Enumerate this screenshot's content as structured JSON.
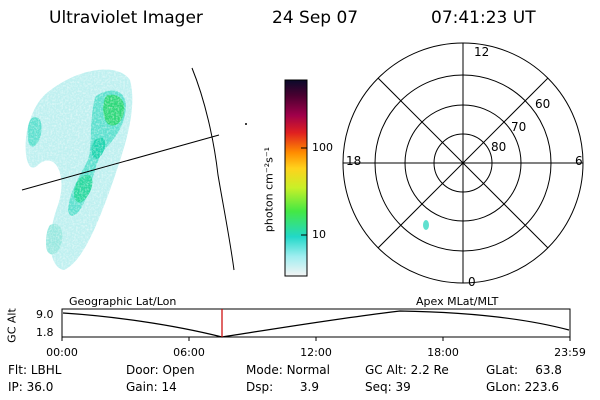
{
  "header": {
    "title": "Ultraviolet Imager",
    "date": "24 Sep 07",
    "time": "07:41:23 UT"
  },
  "colorbar": {
    "unit_label": "photon cm⁻²s⁻¹",
    "ticks": [
      "100",
      "10"
    ]
  },
  "polar_plot": {
    "mlt_labels": {
      "top": "12",
      "left": "18",
      "right": "6",
      "bottom": "0"
    },
    "lat_labels": [
      "60",
      "70",
      "80"
    ]
  },
  "altitude_panel": {
    "ylabel": "GC Alt",
    "y_ticks": [
      "9.0",
      "1.8"
    ],
    "left_title": "Geographic Lat/Lon",
    "right_title": "Apex MLat/MLT",
    "x_ticks": [
      "00:00",
      "06:00",
      "12:00",
      "18:00",
      "23:59"
    ],
    "cursor_time": "07:41"
  },
  "info": {
    "row1": [
      {
        "label": "Flt:",
        "value": "LBHL"
      },
      {
        "label": "Door:",
        "value": "Open"
      },
      {
        "label": "Mode:",
        "value": "Normal"
      },
      {
        "label": "GC Alt:",
        "value": "2.2 Re"
      },
      {
        "label": "GLat:",
        "value": "63.8"
      }
    ],
    "row2": [
      {
        "label": "IP:",
        "value": "36.0"
      },
      {
        "label": "Gain:",
        "value": "14"
      },
      {
        "label": "Dsp:",
        "value": "3.9"
      },
      {
        "label": "Seq:",
        "value": "39"
      },
      {
        "label": "GLon:",
        "value": "223.6"
      }
    ]
  },
  "colors": {
    "cursor": "#cc0000",
    "aurora_faint": "#bff0f0",
    "aurora_mid": "#5fe0cf",
    "aurora_bright": "#2fd87a"
  }
}
